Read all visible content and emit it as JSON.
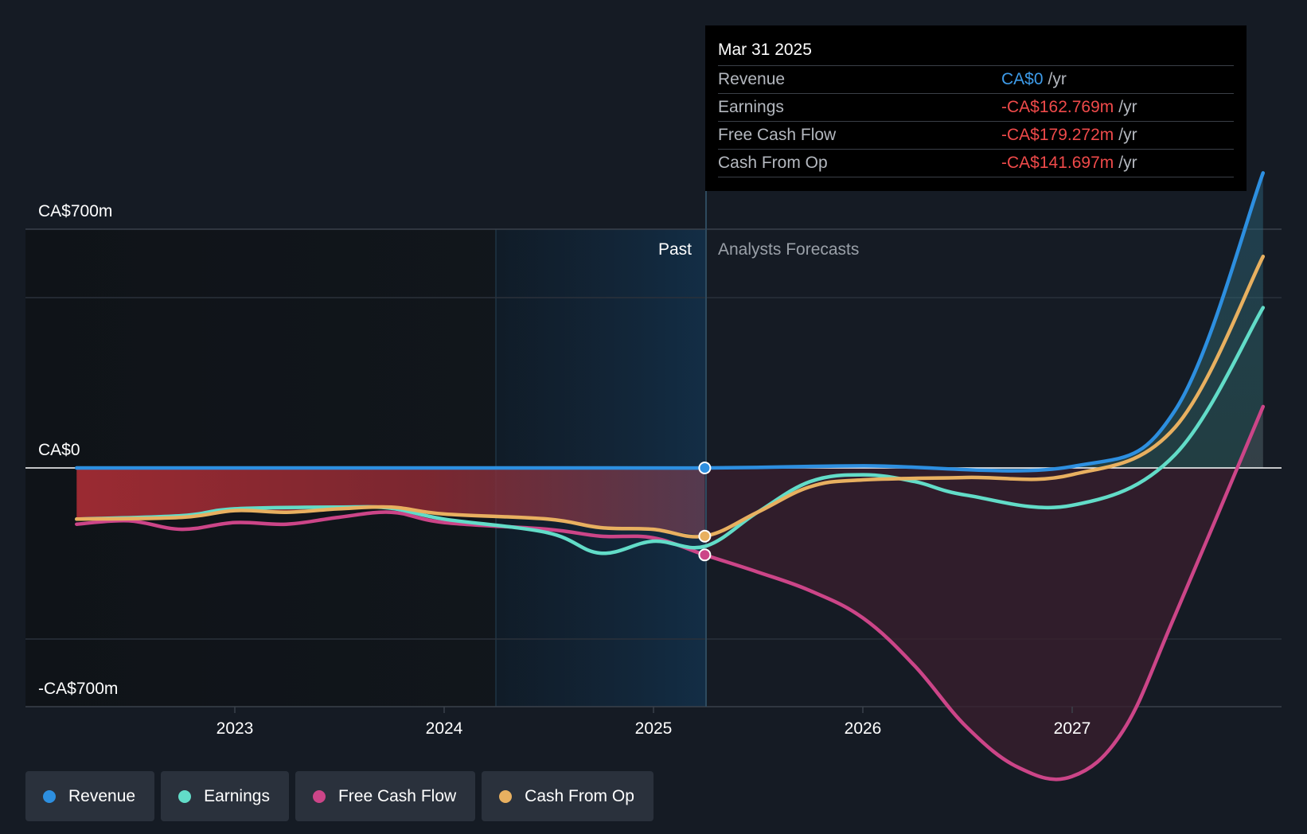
{
  "chart_data": {
    "type": "line",
    "y_axis": {
      "top_label": "CA$700m",
      "zero_label": "CA$0",
      "bottom_label": "-CA$700m",
      "ylim": [
        -1000,
        1000
      ]
    },
    "x_ticks": [
      "2023",
      "2024",
      "2025",
      "2026",
      "2027"
    ],
    "regions": {
      "past_label": "Past",
      "forecast_label": "Analysts Forecasts",
      "divider_date": "2025-03-31"
    },
    "series": [
      {
        "name": "Revenue",
        "color": "#2d8fe0",
        "points": [
          [
            "2022-03-31",
            0
          ],
          [
            "2024-01-01",
            0
          ],
          [
            "2025-03-31",
            0
          ],
          [
            "2026-01-01",
            6
          ],
          [
            "2026-12-31",
            4
          ],
          [
            "2027-06-30",
            170
          ],
          [
            "2027-11-30",
            865
          ]
        ]
      },
      {
        "name": "Earnings",
        "color": "#62dcc8",
        "points": [
          [
            "2022-03-31",
            -150
          ],
          [
            "2022-09-30",
            -140
          ],
          [
            "2023-01-01",
            -120
          ],
          [
            "2023-06-30",
            -115
          ],
          [
            "2023-09-30",
            -118
          ],
          [
            "2024-01-01",
            -150
          ],
          [
            "2024-06-30",
            -190
          ],
          [
            "2024-09-30",
            -250
          ],
          [
            "2024-12-31",
            -215
          ],
          [
            "2025-03-31",
            -230
          ],
          [
            "2025-07-01",
            -130
          ],
          [
            "2025-10-01",
            -40
          ],
          [
            "2026-01-01",
            -20
          ],
          [
            "2026-04-01",
            -40
          ],
          [
            "2026-07-01",
            -80
          ],
          [
            "2026-12-31",
            -110
          ],
          [
            "2027-06-30",
            40
          ],
          [
            "2027-11-30",
            470
          ]
        ]
      },
      {
        "name": "Free Cash Flow",
        "color": "#cc4588",
        "points": [
          [
            "2022-03-31",
            -165
          ],
          [
            "2022-06-30",
            -155
          ],
          [
            "2022-09-30",
            -180
          ],
          [
            "2023-01-01",
            -160
          ],
          [
            "2023-04-01",
            -165
          ],
          [
            "2023-07-01",
            -145
          ],
          [
            "2023-10-01",
            -130
          ],
          [
            "2024-01-01",
            -160
          ],
          [
            "2024-06-30",
            -180
          ],
          [
            "2024-09-30",
            -200
          ],
          [
            "2024-12-31",
            -205
          ],
          [
            "2025-03-31",
            -255
          ],
          [
            "2025-07-01",
            -305
          ],
          [
            "2025-10-01",
            -360
          ],
          [
            "2026-01-01",
            -440
          ],
          [
            "2026-04-01",
            -580
          ],
          [
            "2026-07-01",
            -760
          ],
          [
            "2026-10-01",
            -880
          ],
          [
            "2026-12-31",
            -905
          ],
          [
            "2027-03-31",
            -770
          ],
          [
            "2027-06-30",
            -430
          ],
          [
            "2027-11-30",
            180
          ]
        ]
      },
      {
        "name": "Cash From Op",
        "color": "#e8b060",
        "points": [
          [
            "2022-03-31",
            -150
          ],
          [
            "2022-09-30",
            -145
          ],
          [
            "2023-01-01",
            -125
          ],
          [
            "2023-04-01",
            -130
          ],
          [
            "2023-07-01",
            -120
          ],
          [
            "2023-10-01",
            -115
          ],
          [
            "2024-01-01",
            -135
          ],
          [
            "2024-06-30",
            -150
          ],
          [
            "2024-09-30",
            -175
          ],
          [
            "2024-12-31",
            -180
          ],
          [
            "2025-03-31",
            -200
          ],
          [
            "2025-07-01",
            -130
          ],
          [
            "2025-10-01",
            -55
          ],
          [
            "2026-01-01",
            -35
          ],
          [
            "2026-06-30",
            -28
          ],
          [
            "2026-12-31",
            -20
          ],
          [
            "2027-06-30",
            120
          ],
          [
            "2027-11-30",
            620
          ]
        ]
      }
    ]
  },
  "tooltip": {
    "date": "Mar 31 2025",
    "rows": [
      {
        "label": "Revenue",
        "value": "CA$0",
        "unit": "/yr"
      },
      {
        "label": "Earnings",
        "value": "-CA$162.769m",
        "unit": "/yr"
      },
      {
        "label": "Free Cash Flow",
        "value": "-CA$179.272m",
        "unit": "/yr"
      },
      {
        "label": "Cash From Op",
        "value": "-CA$141.697m",
        "unit": "/yr"
      }
    ]
  },
  "legend": [
    {
      "label": "Revenue",
      "color": "#2d8fe0"
    },
    {
      "label": "Earnings",
      "color": "#62dcc8"
    },
    {
      "label": "Free Cash Flow",
      "color": "#cc4588"
    },
    {
      "label": "Cash From Op",
      "color": "#e8b060"
    }
  ]
}
